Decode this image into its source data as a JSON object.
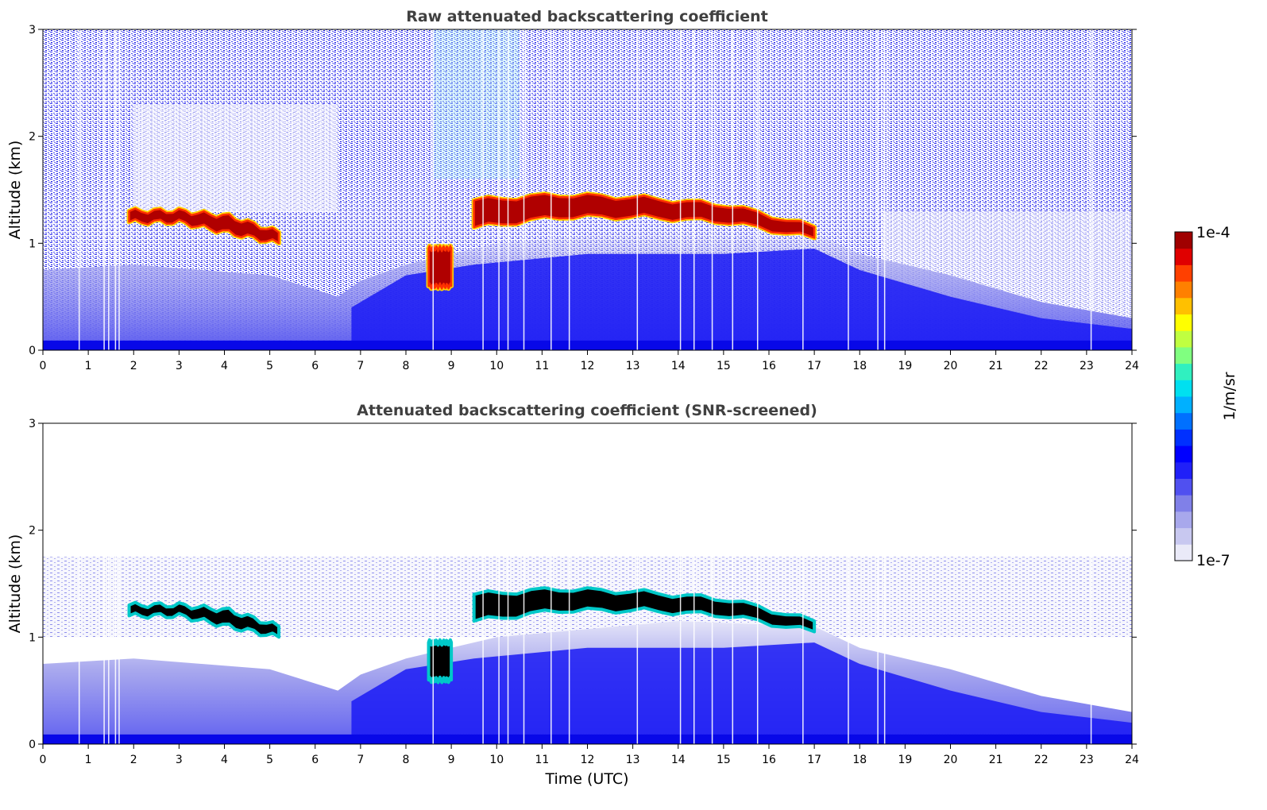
{
  "chart_data": [
    {
      "type": "heatmap",
      "title": "Raw attenuated backscattering coefficient",
      "xlabel": "",
      "ylabel": "Altitude (km)",
      "xlim": [
        0,
        24
      ],
      "ylim": [
        0,
        3
      ],
      "xticks": [
        0,
        1,
        2,
        3,
        4,
        5,
        6,
        7,
        8,
        9,
        10,
        11,
        12,
        13,
        14,
        15,
        16,
        17,
        18,
        19,
        20,
        21,
        22,
        23,
        24
      ],
      "yticks": [
        0,
        1,
        2,
        3
      ],
      "screened": false,
      "cloud_layer": [
        {
          "t_start": 1.9,
          "t_end": 5.2,
          "base_km": [
            1.2,
            1.2,
            1.1,
            1.0
          ],
          "top_km": [
            1.3,
            1.3,
            1.25,
            1.1
          ]
        },
        {
          "t_start": 8.5,
          "t_end": 9.0,
          "base_km": [
            0.6
          ],
          "top_km": [
            0.95
          ]
        },
        {
          "t_start": 9.5,
          "t_end": 17.0,
          "base_km": [
            1.15,
            1.25,
            1.25,
            1.2,
            1.05
          ],
          "top_km": [
            1.4,
            1.45,
            1.42,
            1.35,
            1.15
          ]
        }
      ]
    },
    {
      "type": "heatmap",
      "title": "Attenuated backscattering coefficient (SNR-screened)",
      "xlabel": "Time (UTC)",
      "ylabel": "Altitude (km)",
      "xlim": [
        0,
        24
      ],
      "ylim": [
        0,
        3
      ],
      "xticks": [
        0,
        1,
        2,
        3,
        4,
        5,
        6,
        7,
        8,
        9,
        10,
        11,
        12,
        13,
        14,
        15,
        16,
        17,
        18,
        19,
        20,
        21,
        22,
        23,
        24
      ],
      "yticks": [
        0,
        1,
        2,
        3
      ],
      "screened": true,
      "cloud_layer": [
        {
          "t_start": 1.9,
          "t_end": 5.2,
          "base_km": [
            1.2,
            1.2,
            1.1,
            1.0
          ],
          "top_km": [
            1.3,
            1.3,
            1.25,
            1.1
          ]
        },
        {
          "t_start": 8.5,
          "t_end": 9.0,
          "base_km": [
            0.6
          ],
          "top_km": [
            0.95
          ]
        },
        {
          "t_start": 9.5,
          "t_end": 17.0,
          "base_km": [
            1.15,
            1.25,
            1.25,
            1.2,
            1.05
          ],
          "top_km": [
            1.4,
            1.45,
            1.42,
            1.35,
            1.15
          ]
        }
      ]
    }
  ],
  "colorbar": {
    "label": "1/m/sr",
    "max_label": "1e-4",
    "min_label": "1e-7",
    "colors": [
      "#eaeaf8",
      "#c8c8f0",
      "#a8a8ec",
      "#8080e8",
      "#5050f0",
      "#2020f8",
      "#0000ff",
      "#0030ff",
      "#0070ff",
      "#00b0ff",
      "#00e0f0",
      "#30f0c0",
      "#80ff80",
      "#c0ff40",
      "#ffff00",
      "#ffc000",
      "#ff8000",
      "#ff4000",
      "#e00000",
      "#a00000"
    ]
  }
}
